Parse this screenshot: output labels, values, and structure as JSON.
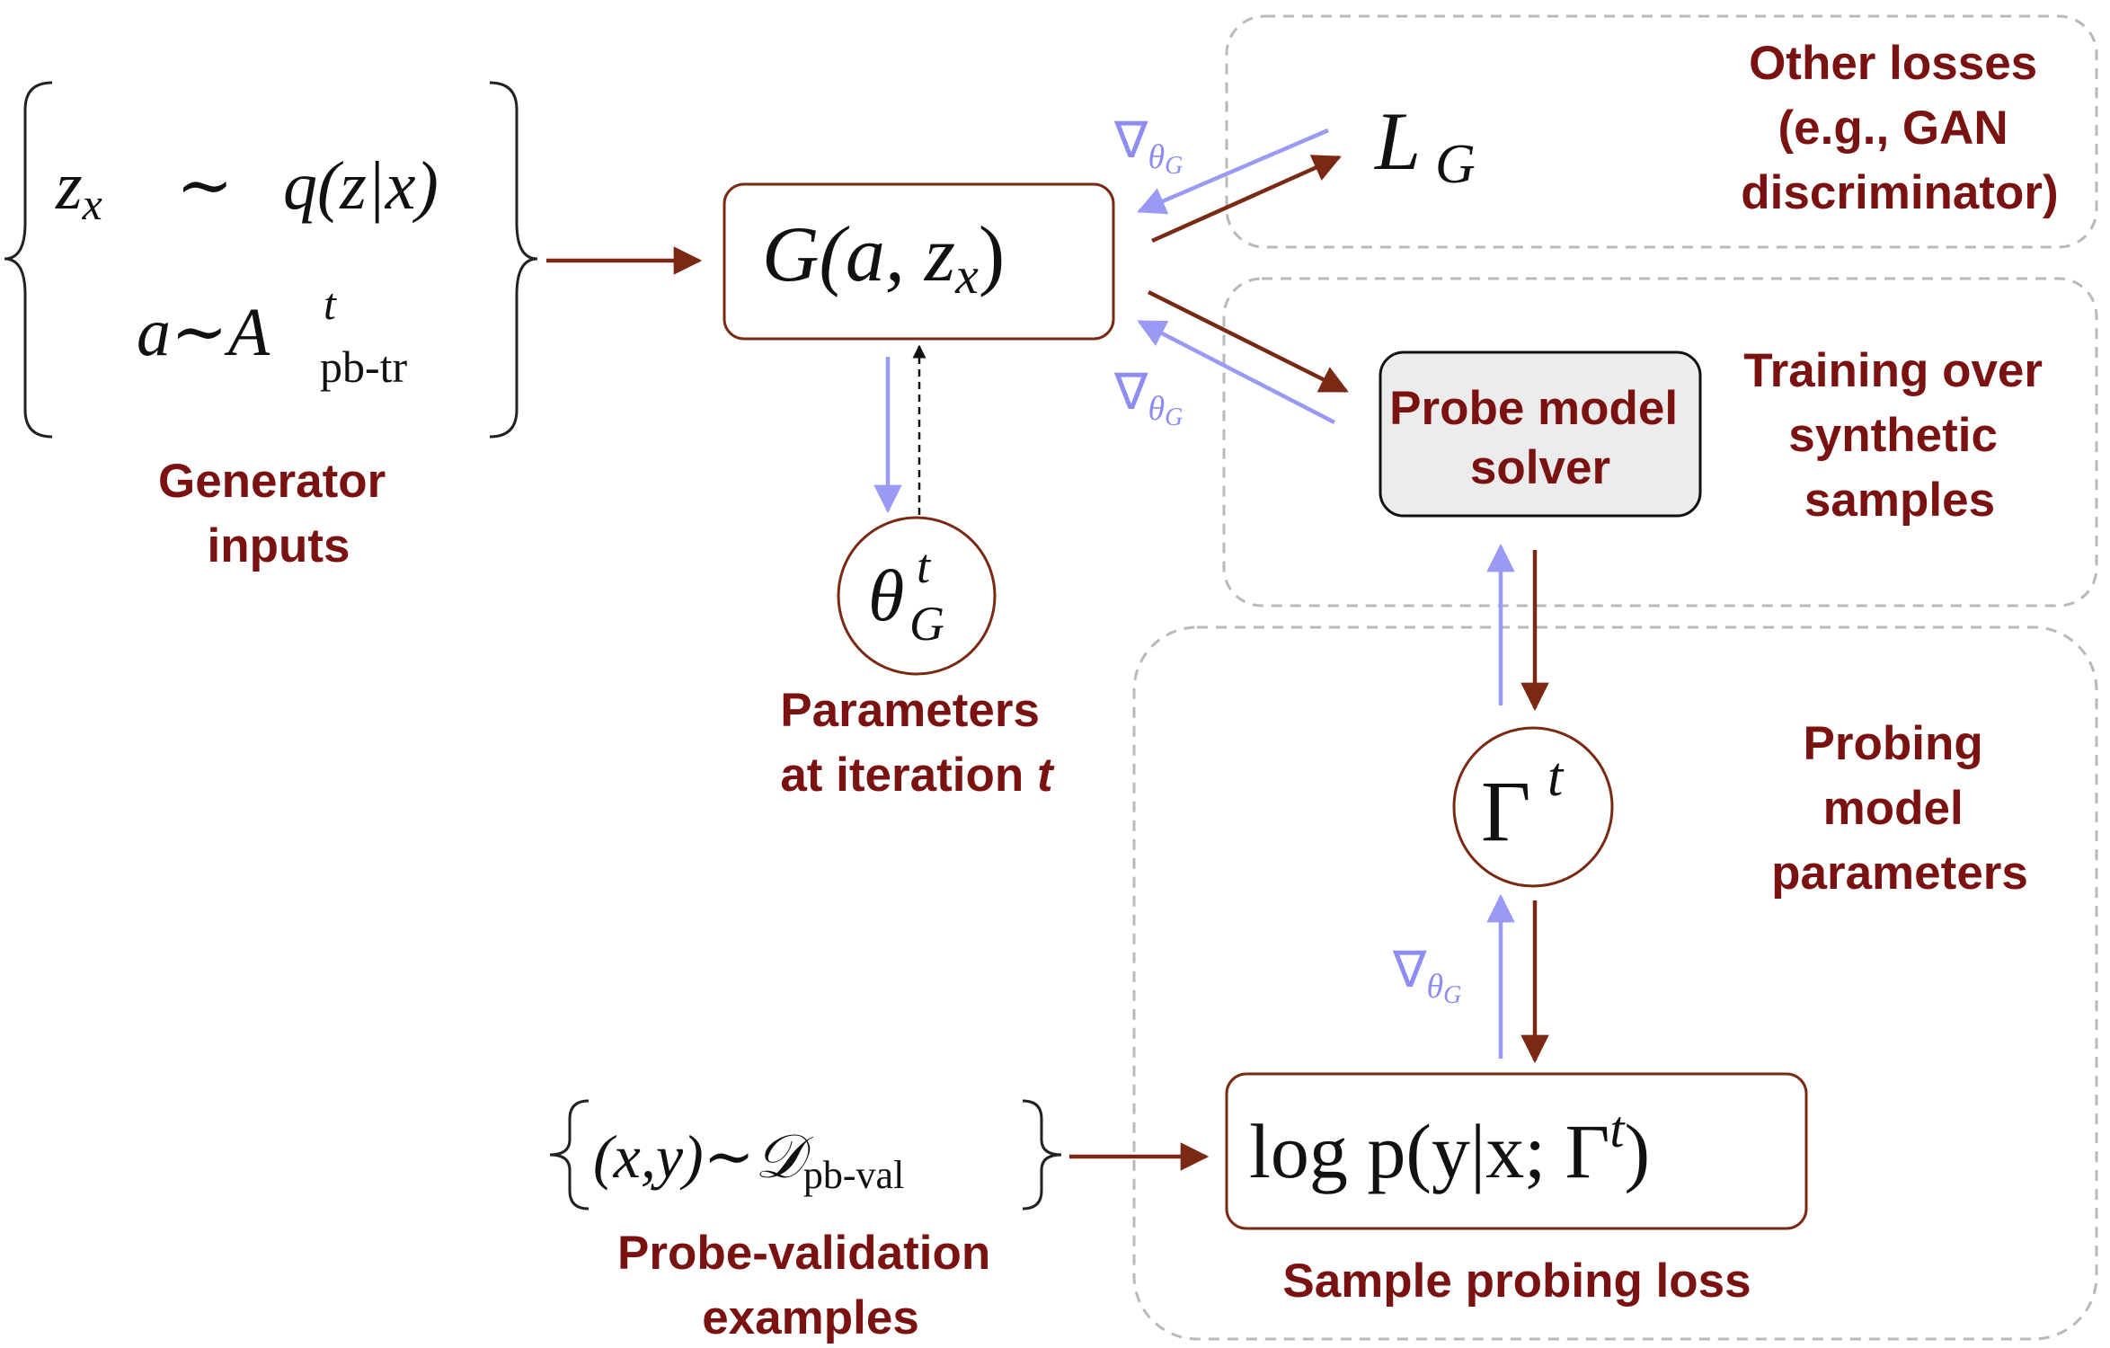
{
  "labels": {
    "generator_inputs": [
      "Generator",
      "inputs"
    ],
    "parameters_at_iteration": [
      "Parameters",
      "at iteration",
      "t"
    ],
    "other_losses": [
      "Other losses",
      "(e.g., GAN",
      "discriminator)"
    ],
    "training_over_synthetic": [
      "Training over",
      "synthetic",
      "samples"
    ],
    "probing_model_parameters": [
      "Probing",
      "model",
      "parameters"
    ],
    "probe_validation_examples": [
      "Probe-validation",
      "examples"
    ],
    "sample_probing_loss": "Sample probing loss",
    "probe_model_solver": [
      "Probe model",
      "solver"
    ]
  },
  "math": {
    "z_x": "z",
    "z_sub": "x",
    "sim": "∼",
    "q_expr": "q(z|x)",
    "a": "a",
    "A": "A",
    "A_sup": "t",
    "A_sub": "pb-tr",
    "G_open": "G(a, z",
    "G_sub": "x",
    "G_close": ")",
    "theta": "θ",
    "theta_sup": "t",
    "theta_sub": "G",
    "L": "L",
    "L_sub": "G",
    "Gamma": "Γ",
    "Gamma_sup": "t",
    "log_main": "log p(y|x; Γ",
    "log_sup": "t",
    "log_close": ")",
    "xy": "(x,y)",
    "D": "𝒟",
    "D_sub": "pb-val",
    "nabla": "∇",
    "nabla_theta": "θ",
    "nabla_sub": "G"
  },
  "colors": {
    "label": "#7a1212",
    "forward_arrow": "#7a2a14",
    "gradient_arrow": "#9a9af5",
    "region_border": "#b9b9b9",
    "solver_fill": "#ececec"
  }
}
